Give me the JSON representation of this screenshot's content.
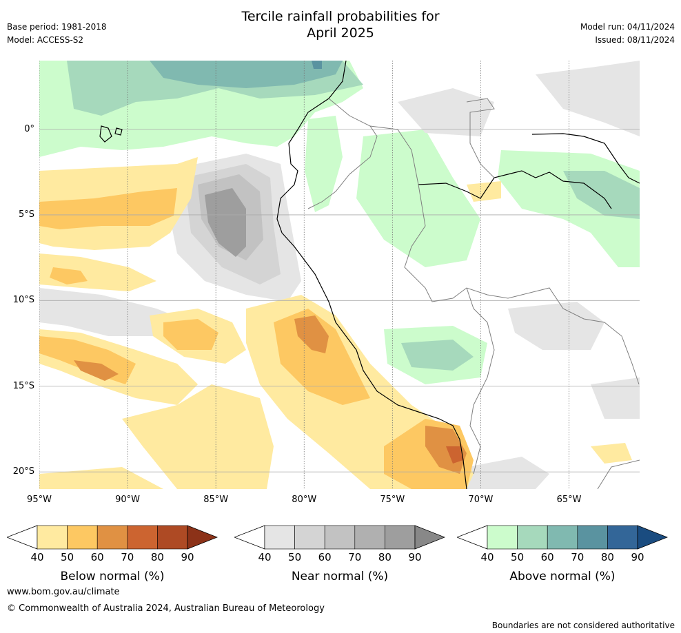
{
  "title_line1": "Tercile rainfall probabilities for",
  "title_line2": "April 2025",
  "base_period": "Base period: 1981-2018",
  "model": "Model: ACCESS-S2",
  "model_run": "Model run: 04/11/2024",
  "issued": "Issued: 08/11/2024",
  "map": {
    "lon_ticks": [
      "95°W",
      "90°W",
      "85°W",
      "80°W",
      "75°W",
      "70°W",
      "65°W"
    ],
    "lat_ticks": [
      "0°",
      "5°S",
      "10°S",
      "15°S",
      "20°S"
    ],
    "lon_values": [
      -95,
      -90,
      -85,
      -80,
      -75,
      -70,
      -65
    ],
    "lat_values": [
      0,
      -5,
      -10,
      -15,
      -20
    ],
    "extent": {
      "lon": [
        -95,
        -61
      ],
      "lat": [
        -21,
        4
      ]
    }
  },
  "colorbars": [
    {
      "label": "Below normal (%)",
      "ticks": [
        "40",
        "50",
        "60",
        "70",
        "80",
        "90"
      ],
      "colors": [
        "#ffeaa0",
        "#fdc862",
        "#e09143",
        "#cc6430",
        "#ae4a24",
        "#8c3218"
      ]
    },
    {
      "label": "Near normal (%)",
      "ticks": [
        "40",
        "50",
        "60",
        "70",
        "80",
        "90"
      ],
      "colors": [
        "#e5e5e5",
        "#d4d4d4",
        "#c2c2c2",
        "#b0b0b0",
        "#9e9e9e",
        "#888888"
      ]
    },
    {
      "label": "Above normal (%)",
      "ticks": [
        "40",
        "50",
        "60",
        "70",
        "80",
        "90"
      ],
      "colors": [
        "#ccfccc",
        "#a6d9bc",
        "#80b9b0",
        "#5a93a0",
        "#336698",
        "#1a4c80"
      ]
    }
  ],
  "footer_url": "www.bom.gov.au/climate",
  "copyright": "© Commonwealth of Australia 2024, Australian Bureau of Meteorology",
  "disclaimer": "Boundaries are not considered authoritative"
}
